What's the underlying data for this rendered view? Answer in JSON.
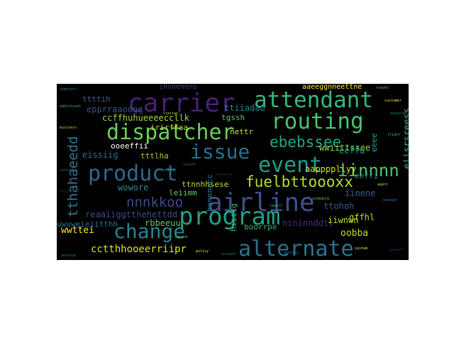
{
  "words": [
    {
      "text": "carrier",
      "color": "#482173"
    },
    {
      "text": "attendant",
      "color": "#35b779"
    },
    {
      "text": "dispatcher",
      "color": "#6ece58"
    },
    {
      "text": "routing",
      "color": "#4ac16d"
    },
    {
      "text": "issue",
      "color": "#2d708e"
    },
    {
      "text": "event",
      "color": "#1f9e89"
    },
    {
      "text": "product",
      "color": "#31688e"
    },
    {
      "text": "ebebssee",
      "color": "#22a884"
    },
    {
      "text": "fuelbttoooxx",
      "color": "#b5de2b"
    },
    {
      "text": "iinnnn",
      "color": "#54c568"
    },
    {
      "text": "nnnkkoo",
      "color": "#3e4989"
    },
    {
      "text": "airline",
      "color": "#3b528b"
    },
    {
      "text": "program",
      "color": "#1fa187"
    },
    {
      "text": "change",
      "color": "#25858e"
    },
    {
      "text": "alternate",
      "color": "#2c728e"
    },
    {
      "text": "cctthhooeerriipr",
      "color": "#dde318"
    },
    {
      "text": "tthahaeedd",
      "color": "#2a788e"
    },
    {
      "text": "epprraaoogg",
      "color": "#3b528b"
    },
    {
      "text": "ihooenens",
      "color": "#443a83"
    },
    {
      "text": "ttiiadad",
      "color": "#26828e"
    },
    {
      "text": "tgssh",
      "color": "#5ec962"
    },
    {
      "text": "ccffhuhueeeeccllk",
      "color": "#9fda3a"
    },
    {
      "text": "irirffaa",
      "color": "#addc30"
    },
    {
      "text": "nettr",
      "color": "#c8e020"
    },
    {
      "text": "ooeeffii",
      "color": "#ffffff"
    },
    {
      "text": "eissiig",
      "color": "#2e6e8e"
    },
    {
      "text": "tttlha",
      "color": "#a0da39"
    },
    {
      "text": "wwiittssee",
      "color": "#8fd744"
    },
    {
      "text": "aappppllyy",
      "color": "#d8e219"
    },
    {
      "text": "eeffu",
      "color": "#1fa088"
    },
    {
      "text": "ttnnhhsese",
      "color": "#c2df23"
    },
    {
      "text": "wowore",
      "color": "#21918c"
    },
    {
      "text": "leiimm",
      "color": "#5ec962"
    },
    {
      "text": "reaaiiggtthehettdd",
      "color": "#3e4a89"
    },
    {
      "text": "hanenecc",
      "color": "#2a788e"
    },
    {
      "text": "ttohoh",
      "color": "#365c8d"
    },
    {
      "text": "gffhl",
      "color": "#c2df23"
    },
    {
      "text": "iinene",
      "color": "#33638d"
    },
    {
      "text": "uwuweieiitthh",
      "color": "#2d708e"
    },
    {
      "text": "rbbeeuu",
      "color": "#5ec962"
    },
    {
      "text": "wwttei",
      "color": "#fde725"
    },
    {
      "text": "hiiitg",
      "color": "#35b779"
    },
    {
      "text": "boorrpe",
      "color": "#35b779"
    },
    {
      "text": "nininnddtt",
      "color": "#472d7b"
    },
    {
      "text": "iiwnwn",
      "color": "#b8de29"
    },
    {
      "text": "oobba",
      "color": "#c2df23"
    },
    {
      "text": "aaeeggnneettne",
      "color": "#fde725"
    },
    {
      "text": "eiisrsreess",
      "color": "#35b779"
    },
    {
      "text": "ttttih",
      "color": "#31688e"
    },
    {
      "text": "eeee",
      "color": "#1f9e89"
    },
    {
      "text": "eeffi",
      "color": "#1f968b"
    }
  ],
  "fillers": [
    "computer",
    "additional",
    "business",
    "contact",
    "online",
    "service",
    "travel",
    "customer",
    "booking",
    "flight",
    "agent",
    "manager",
    "support",
    "office",
    "record",
    "policy",
    "account",
    "report",
    "station",
    "ticket",
    "network",
    "quality",
    "schedule",
    "system"
  ]
}
